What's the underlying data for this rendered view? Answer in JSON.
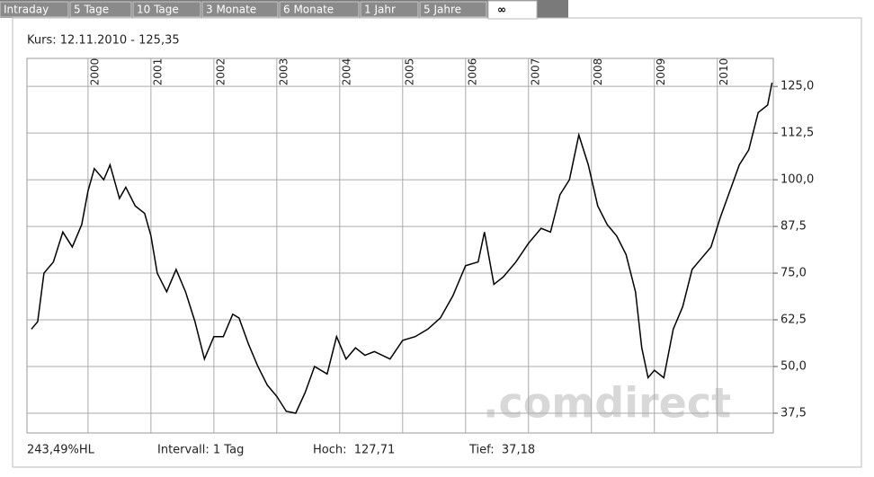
{
  "tabs": [
    "Intraday",
    "5 Tage",
    "10 Tage",
    "3 Monate",
    "6 Monate",
    "1 Jahr",
    "5 Jahre",
    "∞"
  ],
  "header": "Kurs: 12.11.2010 - 125,35",
  "footer": [
    "243,49%HL",
    "Intervall: 1 Tag",
    "Hoch:  127,71",
    "Tief:  37,18"
  ],
  "watermark": ".comdirect",
  "chart_data": {
    "type": "line",
    "x": [
      1999.1,
      1999.2,
      1999.3,
      1999.45,
      1999.6,
      1999.75,
      1999.9,
      2000.0,
      2000.1,
      2000.25,
      2000.35,
      2000.5,
      2000.6,
      2000.75,
      2000.9,
      2001.0,
      2001.1,
      2001.25,
      2001.4,
      2001.55,
      2001.7,
      2001.85,
      2002.0,
      2002.15,
      2002.3,
      2002.4,
      2002.55,
      2002.7,
      2002.85,
      2003.0,
      2003.15,
      2003.3,
      2003.45,
      2003.6,
      2003.8,
      2003.95,
      2004.1,
      2004.25,
      2004.4,
      2004.55,
      2004.8,
      2005.0,
      2005.2,
      2005.4,
      2005.6,
      2005.8,
      2006.0,
      2006.2,
      2006.3,
      2006.45,
      2006.6,
      2006.8,
      2007.0,
      2007.2,
      2007.35,
      2007.5,
      2007.65,
      2007.8,
      2007.95,
      2008.1,
      2008.25,
      2008.4,
      2008.55,
      2008.7,
      2008.8,
      2008.9,
      2009.0,
      2009.15,
      2009.3,
      2009.45,
      2009.6,
      2009.75,
      2009.9,
      2010.05,
      2010.2,
      2010.35,
      2010.5,
      2010.65,
      2010.8,
      2010.87
    ],
    "series": [
      {
        "color": "#000000",
        "values": [
          60,
          62,
          75,
          78,
          86,
          82,
          88,
          97,
          103,
          100,
          104,
          95,
          98,
          93,
          91,
          85,
          75,
          70,
          76,
          70,
          62,
          52,
          58,
          58,
          64,
          63,
          56,
          50,
          45,
          42,
          38,
          37.5,
          43,
          50,
          48,
          58,
          52,
          55,
          53,
          54,
          52,
          57,
          58,
          60,
          63,
          69,
          77,
          78,
          86,
          72,
          74,
          78,
          83,
          87,
          86,
          96,
          100,
          112,
          104,
          93,
          88,
          85,
          80,
          70,
          55,
          47,
          49,
          47,
          60,
          66,
          76,
          79,
          82,
          90,
          97,
          104,
          108,
          118,
          120,
          126
        ]
      }
    ],
    "xlim": [
      1999.03,
      2010.89
    ],
    "xticks": [
      2000,
      2001,
      2002,
      2003,
      2004,
      2005,
      2006,
      2007,
      2008,
      2009,
      2010
    ],
    "ylim": [
      32.2,
      132.5
    ],
    "yticks": [
      {
        "value": 37.5,
        "label": "37,5"
      },
      {
        "value": 50,
        "label": "50,0"
      },
      {
        "value": 62.5,
        "label": "62,5"
      },
      {
        "value": 75,
        "label": "75,0"
      },
      {
        "value": 87.5,
        "label": "87,5"
      },
      {
        "value": 100,
        "label": "100,0"
      },
      {
        "value": 112.5,
        "label": "112,5"
      },
      {
        "value": 125,
        "label": "125,0"
      }
    ],
    "grid": true
  }
}
